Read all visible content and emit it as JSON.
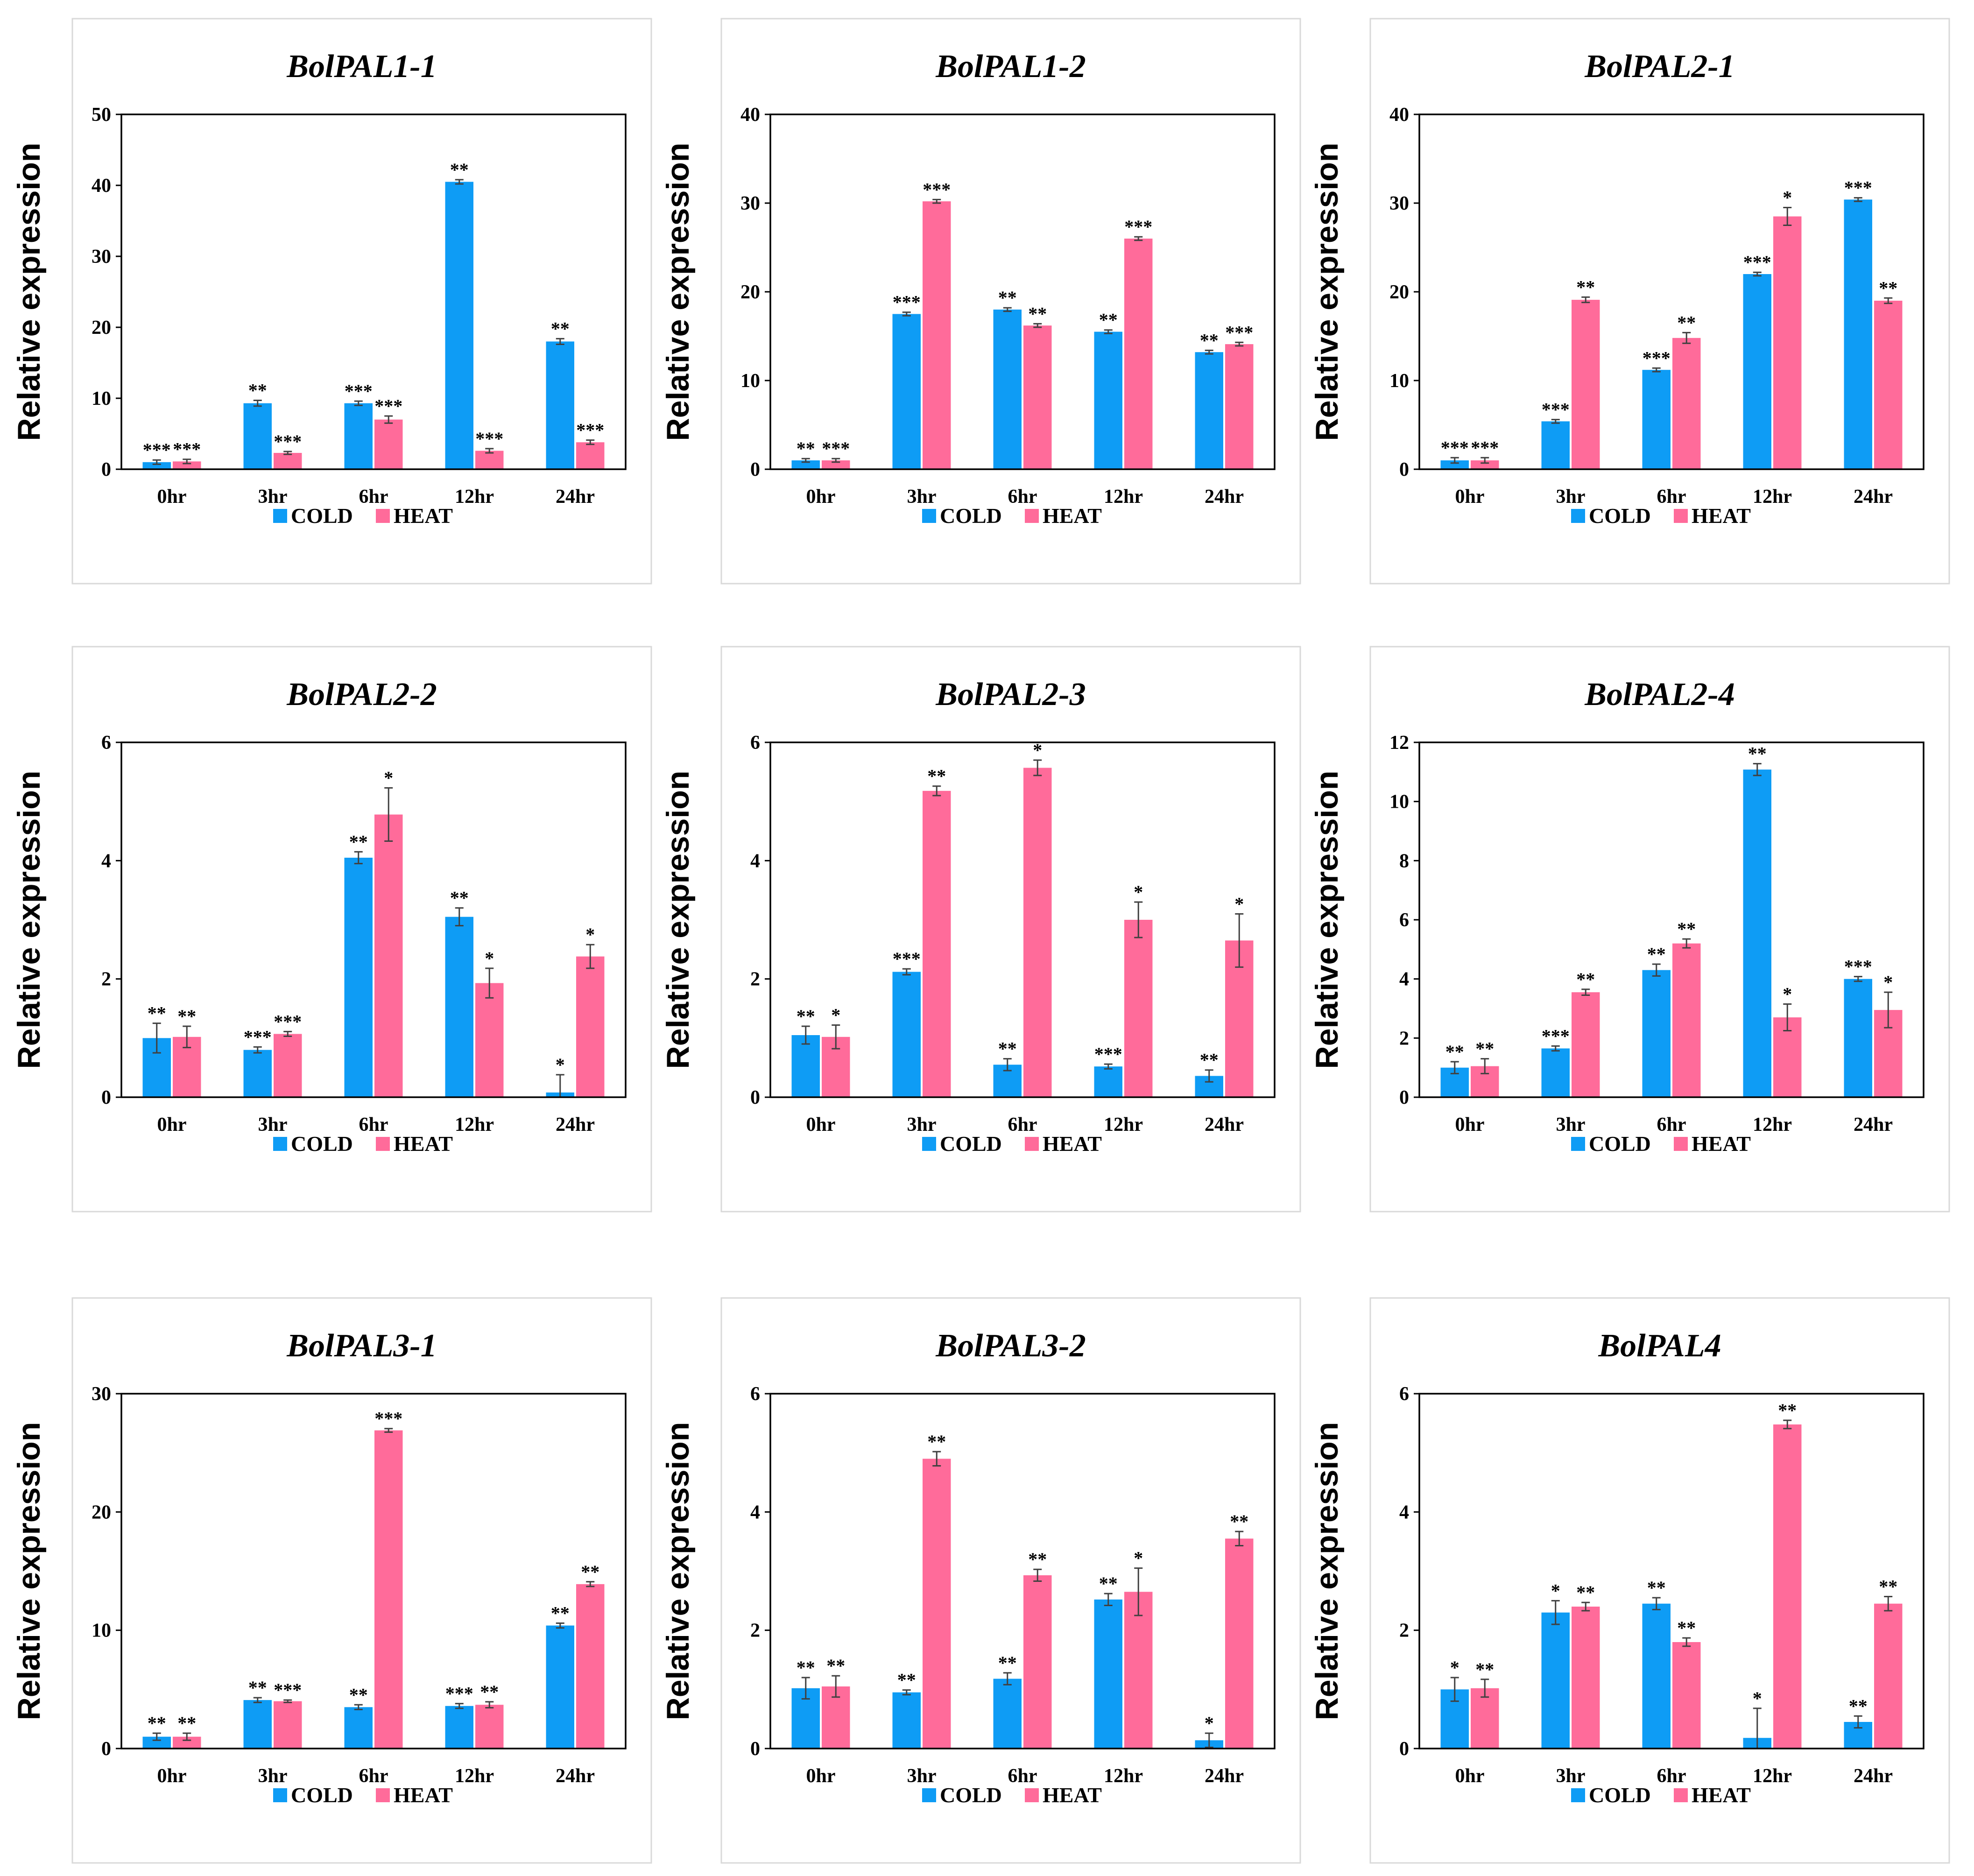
{
  "colors": {
    "cold": "#0e9cf5",
    "heat": "#ff6b9a"
  },
  "legend": {
    "cold": "COLD",
    "heat": "HEAT"
  },
  "ylabel": "Relative expression",
  "chart_data": [
    {
      "type": "bar",
      "title": "BolPAL1-1",
      "ylabel": "Relative expression",
      "categories": [
        "0hr",
        "3hr",
        "6hr",
        "12hr",
        "24hr"
      ],
      "ylim": [
        0,
        50
      ],
      "yticks": [
        0,
        10,
        20,
        30,
        40,
        50
      ],
      "series": [
        {
          "name": "COLD",
          "values": [
            1.0,
            9.3,
            9.3,
            40.5,
            18.0
          ],
          "errors": [
            0.3,
            0.4,
            0.3,
            0.3,
            0.4
          ],
          "sig": [
            "***",
            "**",
            "***",
            "**",
            "**"
          ]
        },
        {
          "name": "HEAT",
          "values": [
            1.1,
            2.3,
            7.0,
            2.6,
            3.8
          ],
          "errors": [
            0.3,
            0.2,
            0.5,
            0.3,
            0.3
          ],
          "sig": [
            "***",
            "***",
            "***",
            "***",
            "***"
          ]
        }
      ]
    },
    {
      "type": "bar",
      "title": "BolPAL1-2",
      "ylabel": "Relative expression",
      "categories": [
        "0hr",
        "3hr",
        "6hr",
        "12hr",
        "24hr"
      ],
      "ylim": [
        0,
        40
      ],
      "yticks": [
        0,
        10,
        20,
        30,
        40
      ],
      "series": [
        {
          "name": "COLD",
          "values": [
            1.0,
            17.5,
            18.0,
            15.5,
            13.2
          ],
          "errors": [
            0.2,
            0.2,
            0.2,
            0.2,
            0.2
          ],
          "sig": [
            "**",
            "***",
            "**",
            "**",
            "**"
          ]
        },
        {
          "name": "HEAT",
          "values": [
            1.0,
            30.2,
            16.2,
            26.0,
            14.1
          ],
          "errors": [
            0.2,
            0.2,
            0.2,
            0.2,
            0.2
          ],
          "sig": [
            "***",
            "***",
            "**",
            "***",
            "***"
          ]
        }
      ]
    },
    {
      "type": "bar",
      "title": "BolPAL2-1",
      "ylabel": "Relative expression",
      "categories": [
        "0hr",
        "3hr",
        "6hr",
        "12hr",
        "24hr"
      ],
      "ylim": [
        0,
        40
      ],
      "yticks": [
        0,
        10,
        20,
        30,
        40
      ],
      "series": [
        {
          "name": "COLD",
          "values": [
            1.0,
            5.4,
            11.2,
            22.0,
            30.4
          ],
          "errors": [
            0.3,
            0.2,
            0.2,
            0.2,
            0.2
          ],
          "sig": [
            "***",
            "***",
            "***",
            "***",
            "***"
          ]
        },
        {
          "name": "HEAT",
          "values": [
            1.0,
            19.1,
            14.8,
            28.5,
            19.0
          ],
          "errors": [
            0.3,
            0.3,
            0.6,
            1.0,
            0.3
          ],
          "sig": [
            "***",
            "**",
            "**",
            "*",
            "**"
          ]
        }
      ]
    },
    {
      "type": "bar",
      "title": "BolPAL2-2",
      "ylabel": "Relative expression",
      "categories": [
        "0hr",
        "3hr",
        "6hr",
        "12hr",
        "24hr"
      ],
      "ylim": [
        0,
        6
      ],
      "yticks": [
        0,
        2,
        4,
        6
      ],
      "series": [
        {
          "name": "COLD",
          "values": [
            1.0,
            0.8,
            4.05,
            3.05,
            0.08
          ],
          "errors": [
            0.25,
            0.05,
            0.1,
            0.15,
            0.3
          ],
          "sig": [
            "**",
            "***",
            "**",
            "**",
            "*"
          ]
        },
        {
          "name": "HEAT",
          "values": [
            1.02,
            1.07,
            4.78,
            1.93,
            2.38
          ],
          "errors": [
            0.18,
            0.04,
            0.45,
            0.25,
            0.2
          ],
          "sig": [
            "**",
            "***",
            "*",
            "*",
            "*"
          ]
        }
      ]
    },
    {
      "type": "bar",
      "title": "BolPAL2-3",
      "ylabel": "Relative expression",
      "categories": [
        "0hr",
        "3hr",
        "6hr",
        "12hr",
        "24hr"
      ],
      "ylim": [
        0,
        6
      ],
      "yticks": [
        0,
        2,
        4,
        6
      ],
      "series": [
        {
          "name": "COLD",
          "values": [
            1.05,
            2.12,
            0.55,
            0.52,
            0.36
          ],
          "errors": [
            0.15,
            0.05,
            0.1,
            0.04,
            0.1
          ],
          "sig": [
            "**",
            "***",
            "**",
            "***",
            "**"
          ]
        },
        {
          "name": "HEAT",
          "values": [
            1.02,
            5.18,
            5.57,
            3.0,
            2.65
          ],
          "errors": [
            0.2,
            0.08,
            0.13,
            0.3,
            0.45
          ],
          "sig": [
            "*",
            "**",
            "*",
            "*",
            "*"
          ]
        }
      ]
    },
    {
      "type": "bar",
      "title": "BolPAL2-4",
      "ylabel": "Relative expression",
      "categories": [
        "0hr",
        "3hr",
        "6hr",
        "12hr",
        "24hr"
      ],
      "ylim": [
        0,
        12
      ],
      "yticks": [
        0,
        2,
        4,
        6,
        8,
        10,
        12
      ],
      "series": [
        {
          "name": "COLD",
          "values": [
            1.0,
            1.65,
            4.3,
            11.08,
            4.0
          ],
          "errors": [
            0.2,
            0.08,
            0.2,
            0.2,
            0.08
          ],
          "sig": [
            "**",
            "***",
            "**",
            "**",
            "***"
          ]
        },
        {
          "name": "HEAT",
          "values": [
            1.05,
            3.55,
            5.2,
            2.7,
            2.95
          ],
          "errors": [
            0.25,
            0.1,
            0.15,
            0.45,
            0.6
          ],
          "sig": [
            "**",
            "**",
            "**",
            "*",
            "*"
          ]
        }
      ]
    },
    {
      "type": "bar",
      "title": "BolPAL3-1",
      "ylabel": "Relative expression",
      "categories": [
        "0hr",
        "3hr",
        "6hr",
        "12hr",
        "24hr"
      ],
      "ylim": [
        0,
        30
      ],
      "yticks": [
        0,
        10,
        20,
        30
      ],
      "series": [
        {
          "name": "COLD",
          "values": [
            1.0,
            4.1,
            3.5,
            3.6,
            10.4
          ],
          "errors": [
            0.3,
            0.2,
            0.2,
            0.2,
            0.2
          ],
          "sig": [
            "**",
            "**",
            "**",
            "***",
            "**"
          ]
        },
        {
          "name": "HEAT",
          "values": [
            1.0,
            4.0,
            26.9,
            3.7,
            13.9
          ],
          "errors": [
            0.3,
            0.1,
            0.15,
            0.25,
            0.2
          ],
          "sig": [
            "**",
            "***",
            "***",
            "**",
            "**"
          ]
        }
      ]
    },
    {
      "type": "bar",
      "title": "BolPAL3-2",
      "ylabel": "Relative expression",
      "categories": [
        "0hr",
        "3hr",
        "6hr",
        "12hr",
        "24hr"
      ],
      "ylim": [
        0,
        6
      ],
      "yticks": [
        0,
        2,
        4,
        6
      ],
      "series": [
        {
          "name": "COLD",
          "values": [
            1.02,
            0.95,
            1.18,
            2.52,
            0.14
          ],
          "errors": [
            0.18,
            0.04,
            0.1,
            0.1,
            0.12
          ],
          "sig": [
            "**",
            "**",
            "**",
            "**",
            "*"
          ]
        },
        {
          "name": "HEAT",
          "values": [
            1.05,
            4.9,
            2.93,
            2.65,
            3.55
          ],
          "errors": [
            0.18,
            0.12,
            0.1,
            0.4,
            0.12
          ],
          "sig": [
            "**",
            "**",
            "**",
            "*",
            "**"
          ]
        }
      ]
    },
    {
      "type": "bar",
      "title": "BolPAL4",
      "ylabel": "Relative expression",
      "categories": [
        "0hr",
        "3hr",
        "6hr",
        "12hr",
        "24hr"
      ],
      "ylim": [
        0,
        6
      ],
      "yticks": [
        0,
        2,
        4,
        6
      ],
      "series": [
        {
          "name": "COLD",
          "values": [
            1.0,
            2.3,
            2.45,
            0.18,
            0.45
          ],
          "errors": [
            0.2,
            0.2,
            0.1,
            0.5,
            0.1
          ],
          "sig": [
            "*",
            "*",
            "**",
            "*",
            "**"
          ]
        },
        {
          "name": "HEAT",
          "values": [
            1.02,
            2.4,
            1.8,
            5.48,
            2.45
          ],
          "errors": [
            0.15,
            0.07,
            0.07,
            0.07,
            0.12
          ],
          "sig": [
            "**",
            "**",
            "**",
            "**",
            "**"
          ]
        }
      ]
    }
  ]
}
